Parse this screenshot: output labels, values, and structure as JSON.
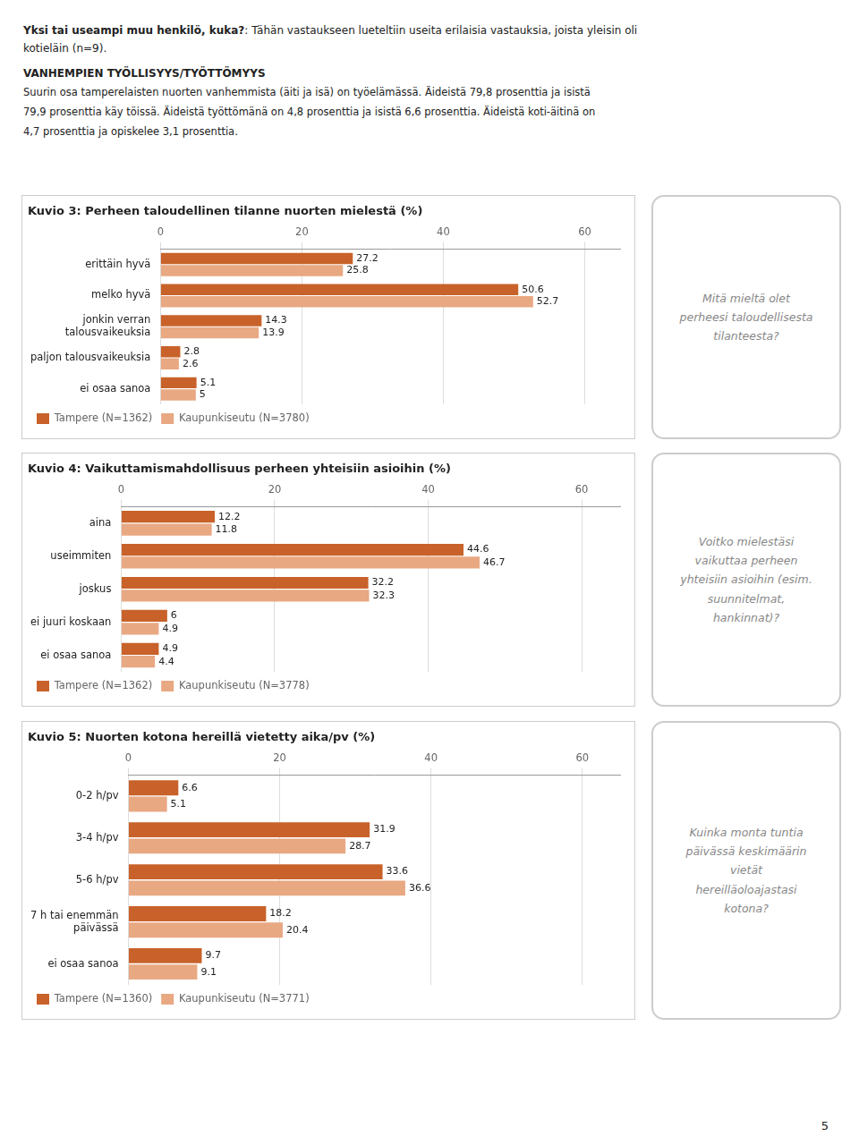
{
  "annotations": [
    "Yksi tai useampi muu henkilö, kuka?",
    ": Tähän vastaukseen lueteltiin useita erilaisia vastauksia, joista yleisin oli",
    "kotieläin (n=9).",
    "VANHEMPIEN TYÖLLISYYS/TYÖTTÖMYYS",
    "Suurin osa tamperelaisten nuorten vanhemmista (äiti ja isä) on työelämässä. Äideistä 79,8 prosenttia ja isistä",
    "79,9 prosenttia käy töissä. Äideistä työttömänä on 4,8 prosenttia ja isistä 6,6 prosenttia. Äideistä koti-äitinä on",
    "4,7 prosenttia ja opiskelee 3,1 prosenttia.",
    "5"
  ],
  "chart_data": [
    {
      "type": "bar",
      "orientation": "horizontal",
      "title": "Kuvio 3: Perheen taloudellinen tilanne nuorten mielestä (%)",
      "categories": [
        "erittäin hyvä",
        "melko hyvä",
        "jonkin verran\ntalousvaikeuksia",
        "paljon talousvaikeuksia",
        "ei osaa sanoa"
      ],
      "series": [
        {
          "name": "Tampere (N=1362)",
          "color": "#C8622A",
          "values": [
            27.2,
            50.6,
            14.3,
            2.8,
            5.1
          ]
        },
        {
          "name": "Kaupunkiseutu (N=3780)",
          "color": "#E8A882",
          "values": [
            25.8,
            52.7,
            13.9,
            2.6,
            5.0
          ]
        }
      ],
      "xlim": [
        0,
        65
      ],
      "xticks": [
        0,
        20,
        40,
        60
      ],
      "grid": true,
      "legend": "bottom",
      "data_labels": true,
      "annotations": [
        "Mitä mieltä olet\nperheesi taloudellisesta\ntilanteesta?"
      ]
    },
    {
      "type": "bar",
      "orientation": "horizontal",
      "title": "Kuvio 4: Vaikuttamismahdollisuus perheen yhteisiin asioihin (%)",
      "categories": [
        "aina",
        "useimmiten",
        "joskus",
        "ei juuri koskaan",
        "ei osaa sanoa"
      ],
      "series": [
        {
          "name": "Tampere (N=1362)",
          "color": "#C8622A",
          "values": [
            12.2,
            44.6,
            32.2,
            6.0,
            4.9
          ]
        },
        {
          "name": "Kaupunkiseutu (N=3778)",
          "color": "#E8A882",
          "values": [
            11.8,
            46.7,
            32.3,
            4.9,
            4.4
          ]
        }
      ],
      "xlim": [
        0,
        65
      ],
      "xticks": [
        0,
        20,
        40,
        60
      ],
      "grid": true,
      "legend": "bottom",
      "data_labels": true,
      "annotations": [
        "Voitko mielestäsi\nvaikuttaa perheen\nyhteisiin asioihin (esim.\nsuunnitelmat,\nhankinnat)?"
      ]
    },
    {
      "type": "bar",
      "orientation": "horizontal",
      "title": "Kuvio 5: Nuorten kotona hereillä vietetty aika/pv (%)",
      "categories": [
        "0-2 h/pv",
        "3-4 h/pv",
        "5-6 h/pv",
        "7 h tai enemmän\npäivässä",
        "ei osaa sanoa"
      ],
      "series": [
        {
          "name": "Tampere (N=1360)",
          "color": "#C8622A",
          "values": [
            6.6,
            31.9,
            33.6,
            18.2,
            9.7
          ]
        },
        {
          "name": "Kaupunkiseutu (N=3771)",
          "color": "#E8A882",
          "values": [
            5.1,
            28.7,
            36.6,
            20.4,
            9.1
          ]
        }
      ],
      "xlim": [
        0,
        65
      ],
      "xticks": [
        0,
        20,
        40,
        60
      ],
      "grid": true,
      "legend": "bottom",
      "data_labels": true,
      "annotations": [
        "Kuinka monta tuntia\npäivässä keskimäärin\nvietät\nhereilläoloajastasi\nkotona?"
      ]
    }
  ]
}
